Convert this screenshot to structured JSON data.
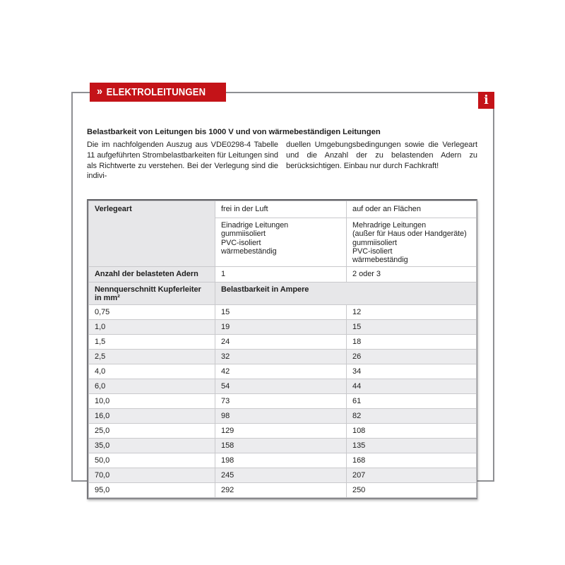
{
  "page": {
    "section_chevrons": "»",
    "section_label": "ELEKTROLEITUNGEN",
    "info_icon": "i",
    "accent_color": "#c41318"
  },
  "article": {
    "title": "Belastbarkeit von Leitungen bis 1000 V und von wärmebeständigen Leitungen",
    "intro_col1": "Die im nachfolgenden Auszug aus VDE0298-4 Tabelle 11 aufgeführten Strombelastbarkeiten für Leitungen sind als Richtwerte zu verstehen. Bei der Verlegung sind die indivi-",
    "intro_col2": "duellen Umgebungsbedingungen sowie die Verlegeart und die Anzahl der zu belastenden Adern zu berücksichtigen. Einbau nur durch Fachkraft!"
  },
  "table": {
    "verlegeart_label": "Verlegeart",
    "col_frei": "frei in der Luft",
    "col_flaechen": "auf oder an Flächen",
    "sub_frei": "Einadrige Leitungen\ngummiisoliert\nPVC-isoliert\nwärmebeständig",
    "sub_flaechen": "Mehradrige Leitungen\n(außer für Haus oder Handgeräte)\ngummiisoliert\nPVC-isoliert\nwärmebeständig",
    "adern_label": "Anzahl der belasteten Adern",
    "adern_frei": "1",
    "adern_flaechen": "2 oder 3",
    "querschnitt_label": "Nennquerschnitt Kupferleiter in mm²",
    "belastbarkeit_label": "Belastbarkeit in Ampere",
    "rows": [
      {
        "querschnitt": "0,75",
        "frei": "15",
        "flaechen": "12"
      },
      {
        "querschnitt": "1,0",
        "frei": "19",
        "flaechen": "15"
      },
      {
        "querschnitt": "1,5",
        "frei": "24",
        "flaechen": "18"
      },
      {
        "querschnitt": "2,5",
        "frei": "32",
        "flaechen": "26"
      },
      {
        "querschnitt": "4,0",
        "frei": "42",
        "flaechen": "34"
      },
      {
        "querschnitt": "6,0",
        "frei": "54",
        "flaechen": "44"
      },
      {
        "querschnitt": "10,0",
        "frei": "73",
        "flaechen": "61"
      },
      {
        "querschnitt": "16,0",
        "frei": "98",
        "flaechen": "82"
      },
      {
        "querschnitt": "25,0",
        "frei": "129",
        "flaechen": "108"
      },
      {
        "querschnitt": "35,0",
        "frei": "158",
        "flaechen": "135"
      },
      {
        "querschnitt": "50,0",
        "frei": "198",
        "flaechen": "168"
      },
      {
        "querschnitt": "70,0",
        "frei": "245",
        "flaechen": "207"
      },
      {
        "querschnitt": "95,0",
        "frei": "292",
        "flaechen": "250"
      }
    ]
  }
}
